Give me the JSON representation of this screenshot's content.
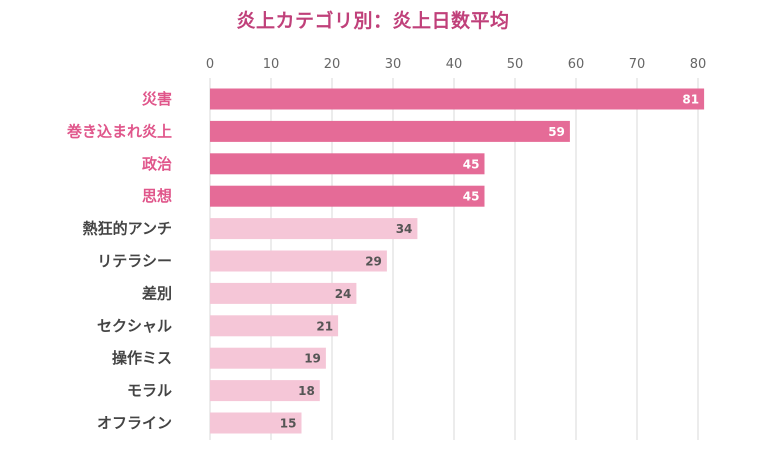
{
  "chart_data": {
    "type": "bar",
    "orientation": "horizontal",
    "title": "炎上カテゴリ別：炎上日数平均",
    "categories": [
      "災害",
      "巻き込まれ炎上",
      "政治",
      "思想",
      "熱狂的アンチ",
      "リテラシー",
      "差別",
      "セクシャル",
      "操作ミス",
      "モラル",
      "オフライン"
    ],
    "values": [
      81,
      59,
      45,
      45,
      34,
      29,
      24,
      21,
      19,
      18,
      15
    ],
    "highlighted": [
      true,
      true,
      true,
      true,
      false,
      false,
      false,
      false,
      false,
      false,
      false
    ],
    "x_ticks": [
      0,
      10,
      20,
      30,
      40,
      50,
      60,
      70,
      80
    ],
    "xlim": [
      0,
      80
    ],
    "xaxis_position": "top",
    "grid": true,
    "legend": "none",
    "colors": {
      "highlight_bar": "#e56b97",
      "normal_bar": "#f5c6d7",
      "highlight_label": "#e0568b",
      "normal_label": "#444444",
      "highlight_value": "#ffffff",
      "normal_value": "#555555",
      "grid": "#d9d9d9",
      "title": "#c0407a"
    }
  }
}
